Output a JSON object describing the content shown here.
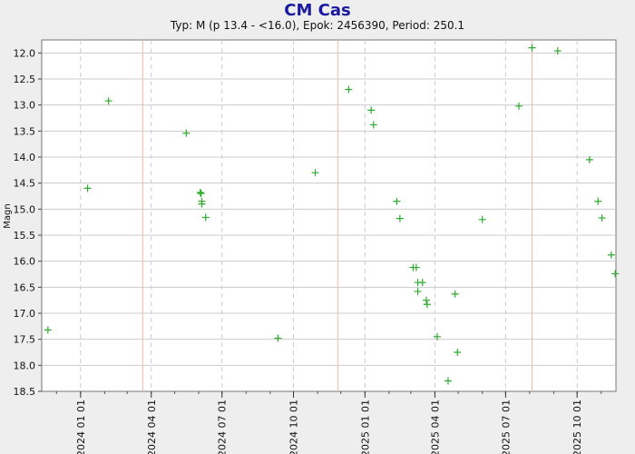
{
  "chart_data": {
    "type": "scatter",
    "title": "CM Cas",
    "subtitle": "Typ: M (p 13.4 - <16.0), Epok: 2456390, Period: 250.1",
    "ylabel": "Magn",
    "ylim": [
      18.5,
      11.75
    ],
    "y_inverted": true,
    "yticks": [
      "12.0",
      "12.5",
      "13.0",
      "13.5",
      "14.0",
      "14.5",
      "15.0",
      "15.5",
      "16.0",
      "16.5",
      "17.0",
      "17.5",
      "18.0",
      "18.5"
    ],
    "xlim": [
      "2023-11-12",
      "2025-11-20"
    ],
    "xticks": [
      "2024 01 01",
      "2024 04 01",
      "2024 07 01",
      "2024 10 01",
      "2025 01 01",
      "2025 04 01",
      "2025 07 01",
      "2025 10 01"
    ],
    "grid": true,
    "marker": "+",
    "colors": {
      "points": "#2eaa2e",
      "grid": "#cccccc",
      "maxima_lines": "#f0b8a8",
      "title": "#1a1aa0"
    },
    "maxima_dates": [
      "2024-03-21",
      "2024-11-27",
      "2025-08-04"
    ],
    "points": [
      {
        "x": "2023-11-20",
        "y": 17.32
      },
      {
        "x": "2024-01-10",
        "y": 14.6
      },
      {
        "x": "2024-02-06",
        "y": 12.92
      },
      {
        "x": "2024-05-16",
        "y": 13.54
      },
      {
        "x": "2024-06-03",
        "y": 14.68
      },
      {
        "x": "2024-06-04",
        "y": 14.7
      },
      {
        "x": "2024-06-05",
        "y": 14.85
      },
      {
        "x": "2024-06-05",
        "y": 14.9
      },
      {
        "x": "2024-06-10",
        "y": 15.16
      },
      {
        "x": "2024-09-11",
        "y": 17.48
      },
      {
        "x": "2024-10-29",
        "y": 14.3
      },
      {
        "x": "2024-12-11",
        "y": 12.7
      },
      {
        "x": "2025-01-09",
        "y": 13.1
      },
      {
        "x": "2025-01-12",
        "y": 13.38
      },
      {
        "x": "2025-02-11",
        "y": 14.85
      },
      {
        "x": "2025-02-15",
        "y": 15.18
      },
      {
        "x": "2025-03-04",
        "y": 16.12
      },
      {
        "x": "2025-03-08",
        "y": 16.12
      },
      {
        "x": "2025-03-10",
        "y": 16.41
      },
      {
        "x": "2025-03-10",
        "y": 16.58
      },
      {
        "x": "2025-03-16",
        "y": 16.41
      },
      {
        "x": "2025-03-21",
        "y": 16.75
      },
      {
        "x": "2025-03-22",
        "y": 16.83
      },
      {
        "x": "2025-04-04",
        "y": 17.45
      },
      {
        "x": "2025-04-18",
        "y": 18.3
      },
      {
        "x": "2025-04-27",
        "y": 16.63
      },
      {
        "x": "2025-04-30",
        "y": 17.75
      },
      {
        "x": "2025-06-01",
        "y": 15.2
      },
      {
        "x": "2025-07-18",
        "y": 13.02
      },
      {
        "x": "2025-08-04",
        "y": 11.9
      },
      {
        "x": "2025-09-06",
        "y": 11.96
      },
      {
        "x": "2025-10-17",
        "y": 14.05
      },
      {
        "x": "2025-10-28",
        "y": 14.85
      },
      {
        "x": "2025-11-02",
        "y": 15.17
      },
      {
        "x": "2025-11-14",
        "y": 15.88
      },
      {
        "x": "2025-11-19",
        "y": 16.24
      }
    ]
  }
}
